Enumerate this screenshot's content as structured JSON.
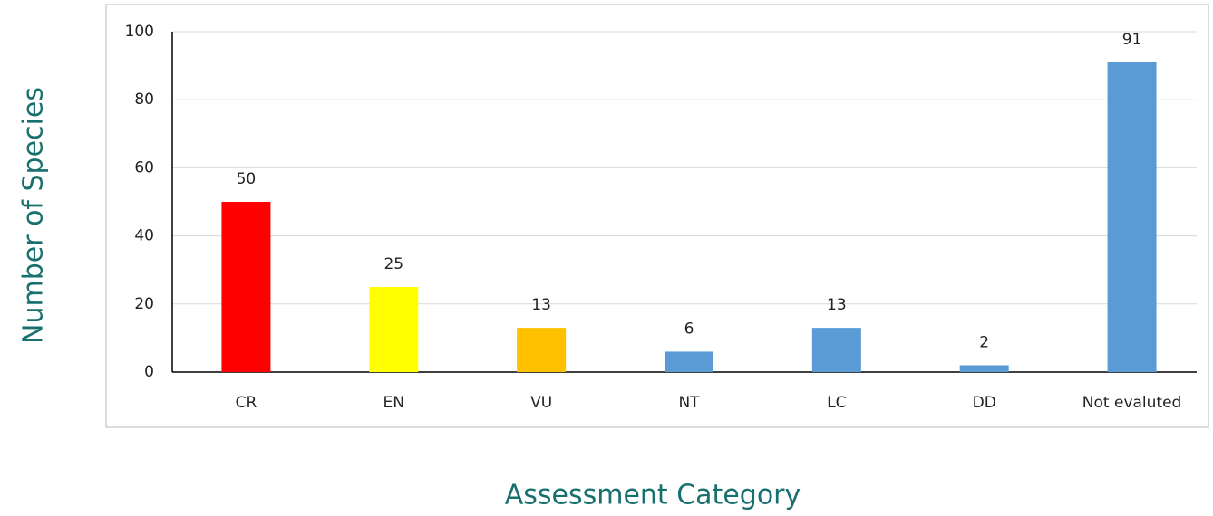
{
  "chart_data": {
    "type": "bar",
    "x_label": "Assessment Category",
    "y_label": "Number of Species",
    "categories": [
      "CR",
      "EN",
      "VU",
      "NT",
      "LC",
      "DD",
      "Not evaluted"
    ],
    "values": [
      50,
      25,
      13,
      6,
      13,
      2,
      91
    ],
    "colors": [
      "#ff0000",
      "#ffff00",
      "#ffc000",
      "#5b9bd5",
      "#5b9bd5",
      "#5b9bd5",
      "#5b9bd5"
    ],
    "ylim": [
      0,
      100
    ],
    "yticks": [
      0,
      20,
      40,
      60,
      80,
      100
    ],
    "grid": true
  }
}
